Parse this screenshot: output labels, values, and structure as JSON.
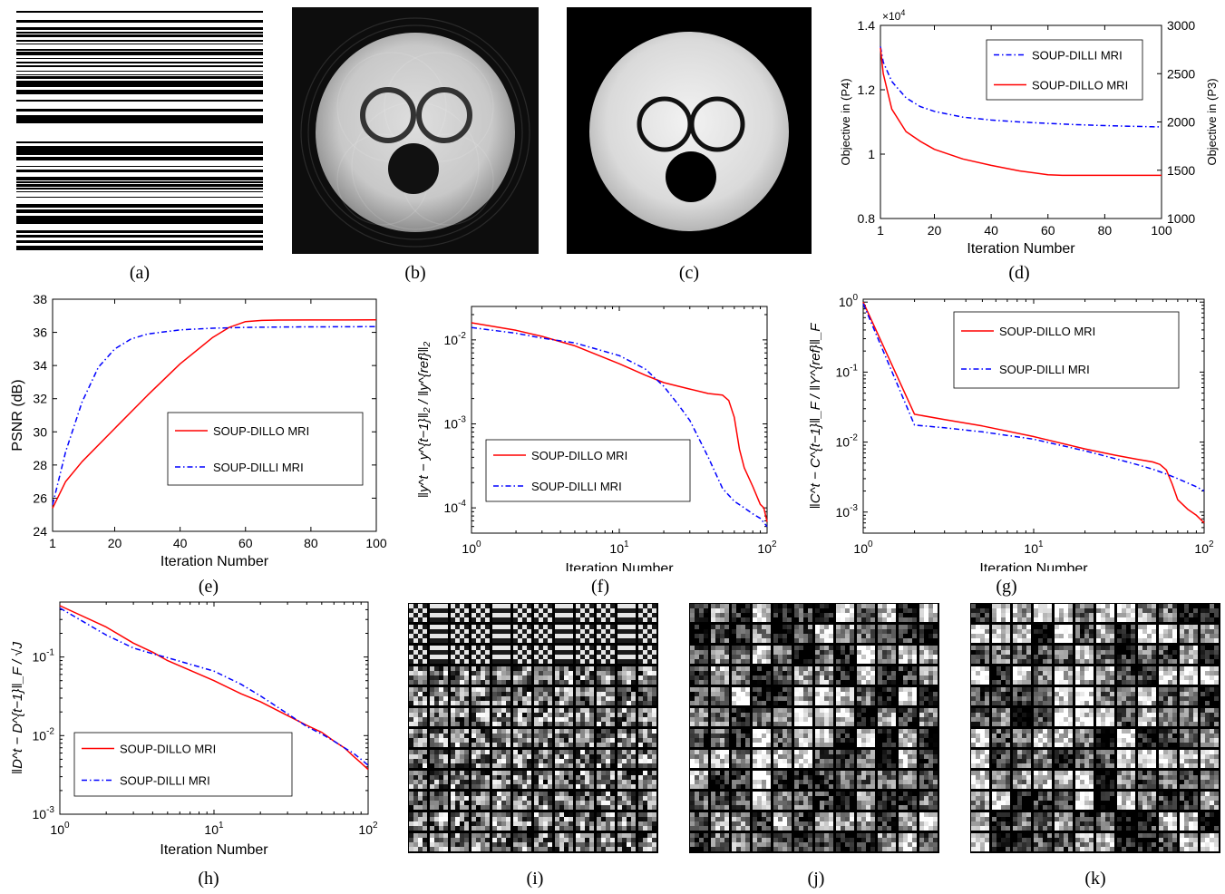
{
  "captions": [
    "(a)",
    "(b)",
    "(c)",
    "(d)",
    "(e)",
    "(f)",
    "(g)",
    "(h)",
    "(i)",
    "(j)",
    "(k)"
  ],
  "images": {
    "mask": "sampling-mask-image",
    "initial": "initial-reconstruction-image",
    "reconstruction": "soup-dillo-reconstruction-image",
    "dict_i": "dictionary-atoms-image-i",
    "dict_j": "dictionary-atoms-image-j",
    "dict_k": "dictionary-atoms-image-k"
  },
  "colors": {
    "dillo": "#ff0000",
    "dilli": "#0000ff"
  },
  "chart_data": [
    {
      "id": "d",
      "type": "line",
      "xlabel": "Iteration Number",
      "ylabel_left": "Objective in  (P4)",
      "ylabel_right": "Objective in  (P3)",
      "exponent_label": "×10",
      "exponent_power": "4",
      "xlim": [
        1,
        100
      ],
      "ylim_left": [
        0.8,
        1.4
      ],
      "ylim_right": [
        1000,
        3000
      ],
      "xticks": [
        "1",
        "20",
        "40",
        "60",
        "80",
        "100"
      ],
      "yticks_left": [
        "0.8",
        "1",
        "1.2",
        "1.4"
      ],
      "yticks_right": [
        "1000",
        "1500",
        "2000",
        "2500",
        "3000"
      ],
      "legend_position": "top-right",
      "series": [
        {
          "name": "SOUP-DILLI MRI",
          "axis": "right",
          "style": "dash-dot",
          "x": [
            1,
            2,
            5,
            10,
            15,
            20,
            30,
            40,
            50,
            60,
            70,
            80,
            90,
            100
          ],
          "y": [
            2780,
            2620,
            2420,
            2250,
            2160,
            2110,
            2050,
            2020,
            2000,
            1985,
            1972,
            1962,
            1955,
            1948
          ]
        },
        {
          "name": "SOUP-DILLO MRI",
          "axis": "left",
          "style": "solid",
          "x": [
            1,
            2,
            5,
            10,
            15,
            20,
            30,
            40,
            50,
            60,
            65,
            70,
            80,
            90,
            100
          ],
          "y": [
            1.33,
            1.25,
            1.14,
            1.07,
            1.04,
            1.015,
            0.985,
            0.965,
            0.948,
            0.936,
            0.934,
            0.934,
            0.934,
            0.934,
            0.934
          ]
        }
      ]
    },
    {
      "id": "e",
      "type": "line",
      "xlabel": "Iteration Number",
      "ylabel": "PSNR (dB)",
      "xlim": [
        1,
        100
      ],
      "ylim": [
        24,
        38
      ],
      "xticks": [
        "1",
        "20",
        "40",
        "60",
        "80",
        "100"
      ],
      "yticks": [
        "24",
        "26",
        "28",
        "30",
        "32",
        "34",
        "36",
        "38"
      ],
      "legend_position": "center-right",
      "series": [
        {
          "name": "SOUP-DILLO MRI",
          "style": "solid",
          "x": [
            1,
            5,
            10,
            20,
            30,
            40,
            50,
            55,
            60,
            65,
            70,
            80,
            90,
            100
          ],
          "y": [
            25.4,
            27.0,
            28.2,
            30.2,
            32.2,
            34.1,
            35.7,
            36.3,
            36.65,
            36.72,
            36.74,
            36.75,
            36.75,
            36.76
          ]
        },
        {
          "name": "SOUP-DILLI MRI",
          "style": "dash-dot",
          "x": [
            1,
            5,
            10,
            15,
            20,
            25,
            30,
            40,
            50,
            60,
            70,
            80,
            90,
            100
          ],
          "y": [
            25.6,
            28.8,
            31.8,
            33.9,
            35.0,
            35.6,
            35.9,
            36.15,
            36.25,
            36.3,
            36.32,
            36.33,
            36.34,
            36.35
          ]
        }
      ]
    },
    {
      "id": "f",
      "type": "line",
      "xscale": "log",
      "yscale": "log",
      "xlabel": "Iteration Number",
      "ylabel": "‖y^t − y^{t−1}‖₂ / ‖y^{ref}‖₂",
      "xlim": [
        1,
        100
      ],
      "ylim": [
        5e-05,
        0.025
      ],
      "xticks": [
        {
          "v": 1,
          "base": "10",
          "exp": "0"
        },
        {
          "v": 10,
          "base": "10",
          "exp": "1"
        },
        {
          "v": 100,
          "base": "10",
          "exp": "2"
        }
      ],
      "yticks": [
        {
          "v": 0.0001,
          "base": "10",
          "exp": "-4"
        },
        {
          "v": 0.001,
          "base": "10",
          "exp": "-3"
        },
        {
          "v": 0.01,
          "base": "10",
          "exp": "-2"
        }
      ],
      "legend_position": "bottom-left",
      "series": [
        {
          "name": "SOUP-DILLO MRI",
          "style": "solid",
          "x": [
            1,
            2,
            3,
            5,
            10,
            15,
            20,
            30,
            40,
            50,
            55,
            60,
            65,
            70,
            80,
            90,
            95,
            100
          ],
          "y": [
            0.016,
            0.013,
            0.011,
            0.0085,
            0.0052,
            0.0038,
            0.0031,
            0.0026,
            0.0023,
            0.0022,
            0.0019,
            0.0012,
            0.0005,
            0.0003,
            0.00018,
            0.00011,
            0.0001,
            6.8e-05
          ]
        },
        {
          "name": "SOUP-DILLI MRI",
          "style": "dash-dot",
          "x": [
            1,
            2,
            3,
            5,
            10,
            15,
            20,
            25,
            30,
            40,
            50,
            60,
            70,
            80,
            90,
            100
          ],
          "y": [
            0.014,
            0.012,
            0.0105,
            0.0092,
            0.0065,
            0.0045,
            0.0028,
            0.0017,
            0.0011,
            0.0004,
            0.00017,
            0.00012,
            0.0001,
            8.5e-05,
            7.5e-05,
            6e-05
          ]
        }
      ]
    },
    {
      "id": "g",
      "type": "line",
      "xscale": "log",
      "yscale": "log",
      "xlabel": "Iteration Number",
      "ylabel": "‖C^t − C^{t−1}‖_F / ‖Y^{ref}‖_F",
      "xlim": [
        1,
        100
      ],
      "ylim": [
        0.0005,
        1.1
      ],
      "xticks": [
        {
          "v": 1,
          "base": "10",
          "exp": "0"
        },
        {
          "v": 10,
          "base": "10",
          "exp": "1"
        },
        {
          "v": 100,
          "base": "10",
          "exp": "2"
        }
      ],
      "yticks": [
        {
          "v": 0.001,
          "base": "10",
          "exp": "-3"
        },
        {
          "v": 0.01,
          "base": "10",
          "exp": "-2"
        },
        {
          "v": 0.1,
          "base": "10",
          "exp": "-1"
        },
        {
          "v": 1,
          "base": "10",
          "exp": "0"
        }
      ],
      "legend_position": "top-right",
      "series": [
        {
          "name": "SOUP-DILLO MRI",
          "style": "solid",
          "x": [
            1,
            2,
            3,
            5,
            10,
            20,
            30,
            40,
            50,
            55,
            60,
            65,
            70,
            80,
            90,
            100
          ],
          "y": [
            1.0,
            0.025,
            0.021,
            0.017,
            0.012,
            0.008,
            0.0065,
            0.0057,
            0.0052,
            0.0048,
            0.004,
            0.0025,
            0.0015,
            0.0011,
            0.0009,
            0.0007
          ]
        },
        {
          "name": "SOUP-DILLI MRI",
          "style": "dash-dot",
          "x": [
            1,
            2,
            3,
            5,
            10,
            20,
            30,
            40,
            50,
            60,
            70,
            80,
            90,
            100
          ],
          "y": [
            0.95,
            0.0175,
            0.016,
            0.014,
            0.011,
            0.0075,
            0.0058,
            0.0048,
            0.0041,
            0.0035,
            0.003,
            0.0026,
            0.0023,
            0.002
          ]
        }
      ]
    },
    {
      "id": "h",
      "type": "line",
      "xscale": "log",
      "yscale": "log",
      "xlabel": "Iteration Number",
      "ylabel": "‖D^t − D^{t−1}‖_F / √J",
      "xlim": [
        1,
        100
      ],
      "ylim": [
        0.001,
        0.5
      ],
      "xticks": [
        {
          "v": 1,
          "base": "10",
          "exp": "0"
        },
        {
          "v": 10,
          "base": "10",
          "exp": "1"
        },
        {
          "v": 100,
          "base": "10",
          "exp": "2"
        }
      ],
      "yticks": [
        {
          "v": 0.001,
          "base": "10",
          "exp": "-3"
        },
        {
          "v": 0.01,
          "base": "10",
          "exp": "-2"
        },
        {
          "v": 0.1,
          "base": "10",
          "exp": "-1"
        }
      ],
      "legend_position": "bottom-left",
      "series": [
        {
          "name": "SOUP-DILLO MRI",
          "style": "solid",
          "x": [
            1,
            2,
            3,
            4,
            5,
            10,
            15,
            20,
            30,
            40,
            50,
            60,
            70,
            80,
            90,
            100
          ],
          "y": [
            0.45,
            0.24,
            0.15,
            0.115,
            0.09,
            0.05,
            0.034,
            0.027,
            0.018,
            0.0135,
            0.011,
            0.0085,
            0.007,
            0.0055,
            0.0045,
            0.0037
          ]
        },
        {
          "name": "SOUP-DILLI MRI",
          "style": "dash-dot",
          "x": [
            1,
            2,
            3,
            4,
            5,
            10,
            15,
            20,
            30,
            40,
            50,
            60,
            70,
            80,
            90,
            100
          ],
          "y": [
            0.42,
            0.19,
            0.13,
            0.11,
            0.098,
            0.066,
            0.045,
            0.032,
            0.019,
            0.013,
            0.0105,
            0.0085,
            0.007,
            0.006,
            0.005,
            0.0042
          ]
        }
      ]
    }
  ]
}
